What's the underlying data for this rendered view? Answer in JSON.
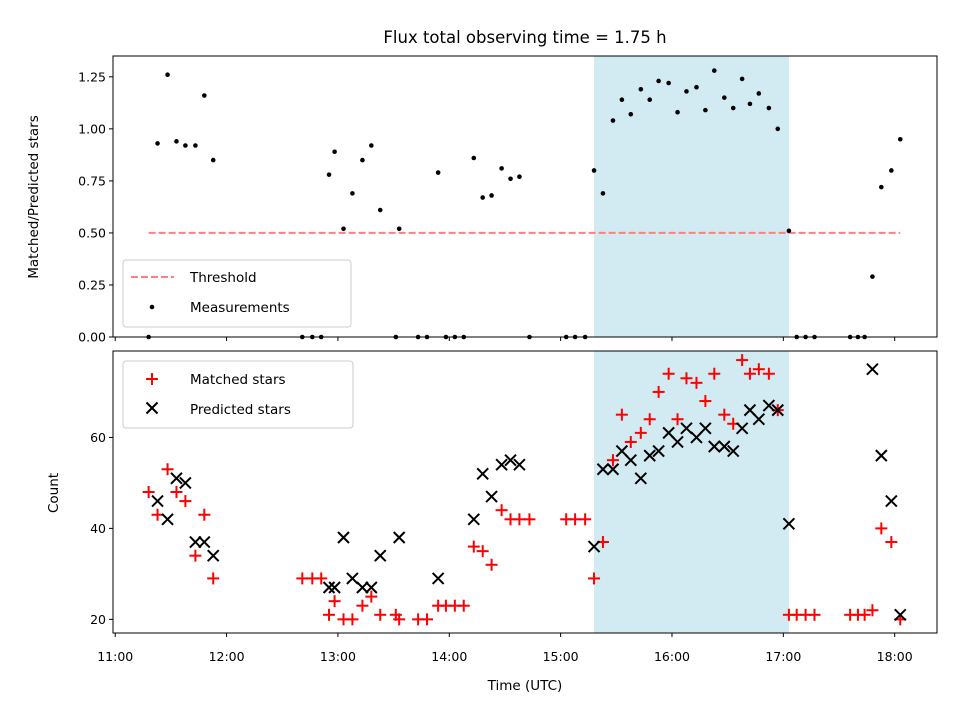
{
  "chart_data": {
    "type": "scatter",
    "title": "Flux total observing time = 1.75 h",
    "xlabel": "Time (UTC)",
    "x_tick_labels": [
      "11:00",
      "12:00",
      "13:00",
      "14:00",
      "15:00",
      "16:00",
      "17:00",
      "18:00"
    ],
    "x_ticks": [
      11,
      12,
      13,
      14,
      15,
      16,
      17,
      18
    ],
    "xlim": [
      10.98,
      18.38
    ],
    "highlight_span": [
      15.3,
      17.05
    ],
    "highlight_color": "#add8e6",
    "panels": [
      {
        "ylabel": "Matched/Predicted stars",
        "ylim": [
          0,
          1.35
        ],
        "y_ticks": [
          0,
          0.25,
          0.5,
          0.75,
          1.0,
          1.25
        ],
        "y_tick_labels": [
          "0.00",
          "0.25",
          "0.50",
          "0.75",
          "1.00",
          "1.25"
        ],
        "legend_position": "lower-left",
        "threshold": {
          "name": "Threshold",
          "value": 0.5,
          "x_range": [
            11.3,
            18.05
          ],
          "color": "#ff7f7f"
        },
        "series": [
          {
            "name": "Measurements",
            "color": "#000000",
            "marker": "dot",
            "points": [
              [
                11.3,
                0
              ],
              [
                11.38,
                0.93
              ],
              [
                11.47,
                1.26
              ],
              [
                11.55,
                0.94
              ],
              [
                11.63,
                0.92
              ],
              [
                11.72,
                0.92
              ],
              [
                11.8,
                1.16
              ],
              [
                11.88,
                0.85
              ],
              [
                12.68,
                0
              ],
              [
                12.77,
                0
              ],
              [
                12.85,
                0
              ],
              [
                12.92,
                0.78
              ],
              [
                12.97,
                0.89
              ],
              [
                13.05,
                0.52
              ],
              [
                13.13,
                0.69
              ],
              [
                13.22,
                0.85
              ],
              [
                13.3,
                0.92
              ],
              [
                13.38,
                0.61
              ],
              [
                13.52,
                0
              ],
              [
                13.55,
                0.52
              ],
              [
                13.72,
                0
              ],
              [
                13.8,
                0
              ],
              [
                13.9,
                0.79
              ],
              [
                13.97,
                0
              ],
              [
                14.05,
                0
              ],
              [
                14.13,
                0
              ],
              [
                14.22,
                0.86
              ],
              [
                14.3,
                0.67
              ],
              [
                14.38,
                0.68
              ],
              [
                14.47,
                0.81
              ],
              [
                14.55,
                0.76
              ],
              [
                14.63,
                0.77
              ],
              [
                14.72,
                0
              ],
              [
                15.05,
                0
              ],
              [
                15.13,
                0
              ],
              [
                15.22,
                0
              ],
              [
                15.3,
                0.8
              ],
              [
                15.38,
                0.69
              ],
              [
                15.47,
                1.04
              ],
              [
                15.55,
                1.14
              ],
              [
                15.63,
                1.07
              ],
              [
                15.72,
                1.19
              ],
              [
                15.8,
                1.14
              ],
              [
                15.88,
                1.23
              ],
              [
                15.97,
                1.22
              ],
              [
                16.05,
                1.08
              ],
              [
                16.13,
                1.18
              ],
              [
                16.22,
                1.2
              ],
              [
                16.3,
                1.09
              ],
              [
                16.38,
                1.28
              ],
              [
                16.47,
                1.15
              ],
              [
                16.55,
                1.1
              ],
              [
                16.63,
                1.24
              ],
              [
                16.7,
                1.12
              ],
              [
                16.78,
                1.17
              ],
              [
                16.87,
                1.1
              ],
              [
                16.95,
                1.0
              ],
              [
                17.05,
                0.51
              ],
              [
                17.12,
                0
              ],
              [
                17.2,
                0
              ],
              [
                17.28,
                0
              ],
              [
                17.6,
                0
              ],
              [
                17.67,
                0
              ],
              [
                17.73,
                0
              ],
              [
                17.8,
                0.29
              ],
              [
                17.88,
                0.72
              ],
              [
                17.97,
                0.8
              ],
              [
                18.05,
                0.95
              ]
            ]
          }
        ]
      },
      {
        "ylabel": "Count",
        "ylim": [
          17,
          79
        ],
        "y_ticks": [
          20,
          40,
          60
        ],
        "y_tick_labels": [
          "20",
          "40",
          "60"
        ],
        "legend_position": "top-left",
        "series": [
          {
            "name": "Matched stars",
            "color": "#ff0000",
            "marker": "plus",
            "points": [
              [
                11.3,
                48
              ],
              [
                11.38,
                43
              ],
              [
                11.47,
                53
              ],
              [
                11.55,
                48
              ],
              [
                11.63,
                46
              ],
              [
                11.72,
                34
              ],
              [
                11.8,
                43
              ],
              [
                11.88,
                29
              ],
              [
                12.68,
                29
              ],
              [
                12.77,
                29
              ],
              [
                12.85,
                29
              ],
              [
                12.92,
                21
              ],
              [
                12.97,
                24
              ],
              [
                13.05,
                20
              ],
              [
                13.13,
                20
              ],
              [
                13.22,
                23
              ],
              [
                13.3,
                25
              ],
              [
                13.38,
                21
              ],
              [
                13.52,
                21
              ],
              [
                13.55,
                20
              ],
              [
                13.72,
                20
              ],
              [
                13.8,
                20
              ],
              [
                13.9,
                23
              ],
              [
                13.97,
                23
              ],
              [
                14.05,
                23
              ],
              [
                14.13,
                23
              ],
              [
                14.22,
                36
              ],
              [
                14.3,
                35
              ],
              [
                14.38,
                32
              ],
              [
                14.47,
                44
              ],
              [
                14.55,
                42
              ],
              [
                14.63,
                42
              ],
              [
                14.72,
                42
              ],
              [
                15.05,
                42
              ],
              [
                15.13,
                42
              ],
              [
                15.22,
                42
              ],
              [
                15.3,
                29
              ],
              [
                15.38,
                37
              ],
              [
                15.47,
                55
              ],
              [
                15.55,
                65
              ],
              [
                15.63,
                59
              ],
              [
                15.72,
                61
              ],
              [
                15.8,
                64
              ],
              [
                15.88,
                70
              ],
              [
                15.97,
                74
              ],
              [
                16.05,
                64
              ],
              [
                16.13,
                73
              ],
              [
                16.22,
                72
              ],
              [
                16.3,
                68
              ],
              [
                16.38,
                74
              ],
              [
                16.47,
                65
              ],
              [
                16.55,
                63
              ],
              [
                16.63,
                77
              ],
              [
                16.7,
                74
              ],
              [
                16.78,
                75
              ],
              [
                16.87,
                74
              ],
              [
                16.95,
                66
              ],
              [
                17.05,
                21
              ],
              [
                17.12,
                21
              ],
              [
                17.2,
                21
              ],
              [
                17.28,
                21
              ],
              [
                17.6,
                21
              ],
              [
                17.67,
                21
              ],
              [
                17.73,
                21
              ],
              [
                17.8,
                22
              ],
              [
                17.88,
                40
              ],
              [
                17.97,
                37
              ],
              [
                18.05,
                20
              ]
            ]
          },
          {
            "name": "Predicted stars",
            "color": "#000000",
            "marker": "x",
            "points": [
              [
                11.38,
                46
              ],
              [
                11.47,
                42
              ],
              [
                11.55,
                51
              ],
              [
                11.63,
                50
              ],
              [
                11.72,
                37
              ],
              [
                11.8,
                37
              ],
              [
                11.88,
                34
              ],
              [
                12.92,
                27
              ],
              [
                12.97,
                27
              ],
              [
                13.05,
                38
              ],
              [
                13.13,
                29
              ],
              [
                13.22,
                27
              ],
              [
                13.3,
                27
              ],
              [
                13.38,
                34
              ],
              [
                13.55,
                38
              ],
              [
                13.9,
                29
              ],
              [
                14.22,
                42
              ],
              [
                14.3,
                52
              ],
              [
                14.38,
                47
              ],
              [
                14.47,
                54
              ],
              [
                14.55,
                55
              ],
              [
                14.63,
                54
              ],
              [
                15.3,
                36
              ],
              [
                15.38,
                53
              ],
              [
                15.47,
                53
              ],
              [
                15.55,
                57
              ],
              [
                15.63,
                55
              ],
              [
                15.72,
                51
              ],
              [
                15.8,
                56
              ],
              [
                15.88,
                57
              ],
              [
                15.97,
                61
              ],
              [
                16.05,
                59
              ],
              [
                16.13,
                62
              ],
              [
                16.22,
                60
              ],
              [
                16.3,
                62
              ],
              [
                16.38,
                58
              ],
              [
                16.47,
                58
              ],
              [
                16.55,
                57
              ],
              [
                16.63,
                62
              ],
              [
                16.7,
                66
              ],
              [
                16.78,
                64
              ],
              [
                16.87,
                67
              ],
              [
                16.95,
                66
              ],
              [
                17.05,
                41
              ],
              [
                17.8,
                75
              ],
              [
                17.88,
                56
              ],
              [
                17.97,
                46
              ],
              [
                18.05,
                21
              ]
            ]
          }
        ]
      }
    ]
  }
}
